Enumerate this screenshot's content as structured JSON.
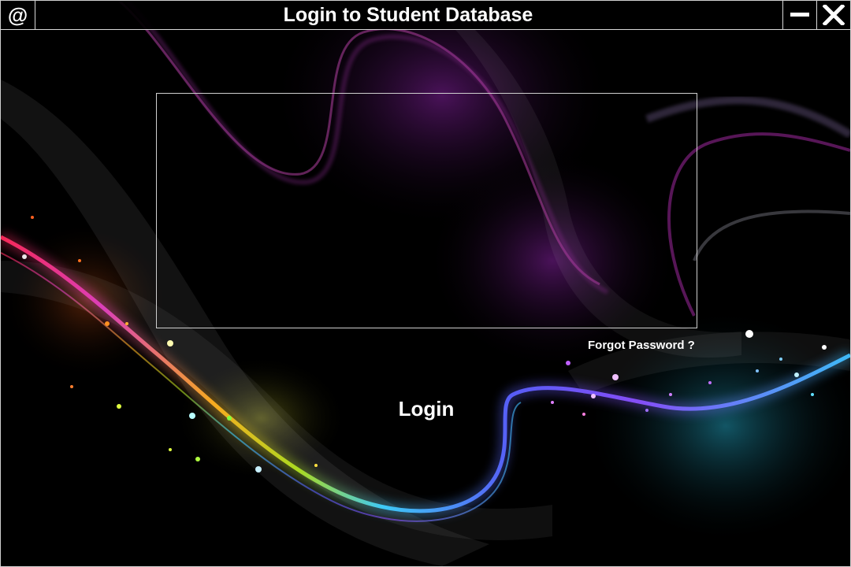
{
  "window": {
    "app_icon_glyph": "@",
    "title": "Login to Student Database",
    "icons": {
      "app": "at-sign-icon",
      "minimize": "minimize-icon",
      "close": "close-icon"
    }
  },
  "form": {
    "forgot_password": "Forgot Password ?",
    "login_label": "Login"
  },
  "colors": {
    "background": "#000000",
    "text": "#ffffff",
    "border": "#cfcfcf",
    "wave_purple": "#7a3cff",
    "wave_pink": "#e040c0",
    "wave_cyan": "#3fd0ff",
    "wave_orange": "#ff7a20"
  }
}
